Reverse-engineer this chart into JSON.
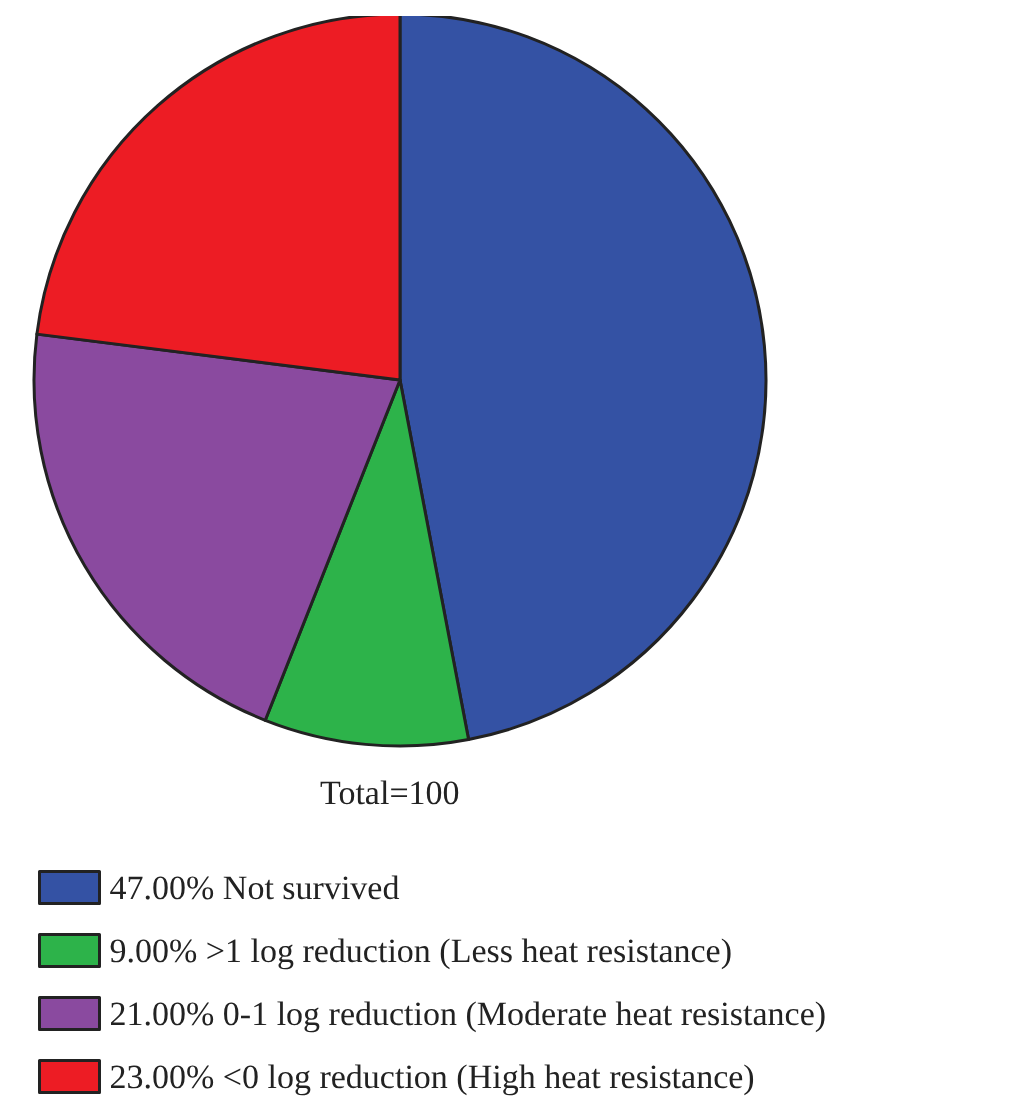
{
  "chart_data": {
    "type": "pie",
    "categories": [
      "Not survived",
      ">1 log reduction (Less heat resistance)",
      "0-1 log reduction (Moderate heat resistance)",
      "<0 log reduction (High heat resistance)"
    ],
    "values": [
      47,
      9,
      21,
      23
    ],
    "colors": [
      "#3452a4",
      "#2db34a",
      "#8a4a9f",
      "#ed1c24"
    ],
    "value_labels": [
      "47.00%",
      "9.00%",
      "21.00%",
      "23.00%"
    ],
    "annotations": [
      "Total=100"
    ],
    "legend": "bottom"
  }
}
